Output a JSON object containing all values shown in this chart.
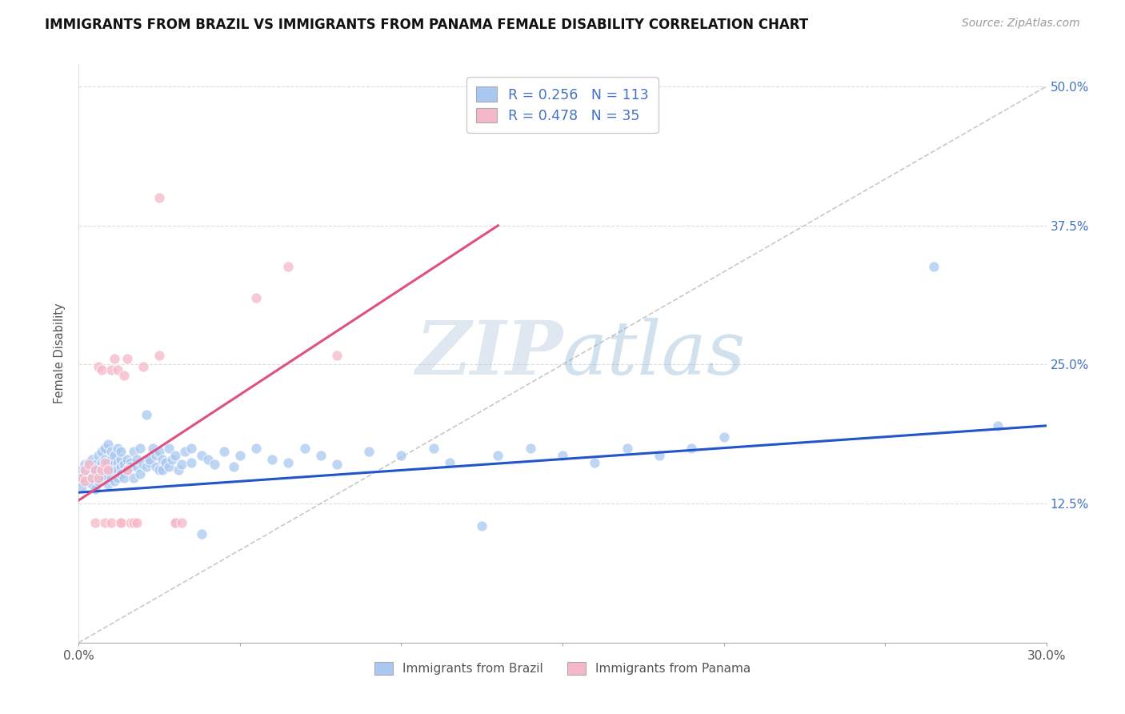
{
  "title": "IMMIGRANTS FROM BRAZIL VS IMMIGRANTS FROM PANAMA FEMALE DISABILITY CORRELATION CHART",
  "source": "Source: ZipAtlas.com",
  "xlabel_brazil": "Immigrants from Brazil",
  "xlabel_panama": "Immigrants from Panama",
  "ylabel": "Female Disability",
  "xlim": [
    0.0,
    0.3
  ],
  "ylim": [
    0.0,
    0.52
  ],
  "brazil_R": 0.256,
  "brazil_N": 113,
  "panama_R": 0.478,
  "panama_N": 35,
  "brazil_color": "#a8c8f0",
  "panama_color": "#f5b8c8",
  "brazil_trend_color": "#2255cc",
  "panama_trend_color": "#e05080",
  "diagonal_color": "#bbbbbb",
  "watermark_color": "#c5d8ec",
  "brazil_trend": [
    0.0,
    0.135,
    0.3,
    0.195
  ],
  "panama_trend": [
    0.0,
    0.128,
    0.13,
    0.375
  ],
  "brazil_scatter": [
    [
      0.001,
      0.15
    ],
    [
      0.001,
      0.145
    ],
    [
      0.001,
      0.155
    ],
    [
      0.001,
      0.14
    ],
    [
      0.002,
      0.148
    ],
    [
      0.002,
      0.16
    ],
    [
      0.002,
      0.155
    ],
    [
      0.002,
      0.152
    ],
    [
      0.003,
      0.158
    ],
    [
      0.003,
      0.145
    ],
    [
      0.003,
      0.162
    ],
    [
      0.003,
      0.15
    ],
    [
      0.004,
      0.155
    ],
    [
      0.004,
      0.148
    ],
    [
      0.004,
      0.165
    ],
    [
      0.004,
      0.142
    ],
    [
      0.005,
      0.16
    ],
    [
      0.005,
      0.152
    ],
    [
      0.005,
      0.155
    ],
    [
      0.005,
      0.138
    ],
    [
      0.006,
      0.158
    ],
    [
      0.006,
      0.148
    ],
    [
      0.006,
      0.168
    ],
    [
      0.006,
      0.145
    ],
    [
      0.007,
      0.162
    ],
    [
      0.007,
      0.155
    ],
    [
      0.007,
      0.172
    ],
    [
      0.007,
      0.15
    ],
    [
      0.008,
      0.158
    ],
    [
      0.008,
      0.148
    ],
    [
      0.008,
      0.165
    ],
    [
      0.008,
      0.175
    ],
    [
      0.009,
      0.162
    ],
    [
      0.009,
      0.155
    ],
    [
      0.009,
      0.178
    ],
    [
      0.009,
      0.142
    ],
    [
      0.01,
      0.155
    ],
    [
      0.01,
      0.148
    ],
    [
      0.01,
      0.165
    ],
    [
      0.01,
      0.172
    ],
    [
      0.011,
      0.16
    ],
    [
      0.011,
      0.155
    ],
    [
      0.011,
      0.145
    ],
    [
      0.011,
      0.168
    ],
    [
      0.012,
      0.162
    ],
    [
      0.012,
      0.155
    ],
    [
      0.012,
      0.148
    ],
    [
      0.012,
      0.175
    ],
    [
      0.013,
      0.158
    ],
    [
      0.013,
      0.152
    ],
    [
      0.013,
      0.165
    ],
    [
      0.013,
      0.172
    ],
    [
      0.014,
      0.16
    ],
    [
      0.014,
      0.148
    ],
    [
      0.015,
      0.155
    ],
    [
      0.015,
      0.165
    ],
    [
      0.016,
      0.162
    ],
    [
      0.016,
      0.158
    ],
    [
      0.017,
      0.148
    ],
    [
      0.017,
      0.172
    ],
    [
      0.018,
      0.158
    ],
    [
      0.018,
      0.165
    ],
    [
      0.019,
      0.175
    ],
    [
      0.019,
      0.152
    ],
    [
      0.02,
      0.16
    ],
    [
      0.021,
      0.205
    ],
    [
      0.021,
      0.158
    ],
    [
      0.022,
      0.162
    ],
    [
      0.022,
      0.165
    ],
    [
      0.023,
      0.175
    ],
    [
      0.024,
      0.168
    ],
    [
      0.024,
      0.158
    ],
    [
      0.025,
      0.155
    ],
    [
      0.025,
      0.172
    ],
    [
      0.026,
      0.165
    ],
    [
      0.026,
      0.155
    ],
    [
      0.027,
      0.162
    ],
    [
      0.028,
      0.175
    ],
    [
      0.028,
      0.158
    ],
    [
      0.029,
      0.165
    ],
    [
      0.03,
      0.168
    ],
    [
      0.031,
      0.155
    ],
    [
      0.032,
      0.16
    ],
    [
      0.033,
      0.172
    ],
    [
      0.035,
      0.162
    ],
    [
      0.035,
      0.175
    ],
    [
      0.038,
      0.168
    ],
    [
      0.038,
      0.098
    ],
    [
      0.04,
      0.165
    ],
    [
      0.042,
      0.16
    ],
    [
      0.045,
      0.172
    ],
    [
      0.048,
      0.158
    ],
    [
      0.05,
      0.168
    ],
    [
      0.055,
      0.175
    ],
    [
      0.06,
      0.165
    ],
    [
      0.065,
      0.162
    ],
    [
      0.07,
      0.175
    ],
    [
      0.075,
      0.168
    ],
    [
      0.08,
      0.16
    ],
    [
      0.09,
      0.172
    ],
    [
      0.1,
      0.168
    ],
    [
      0.11,
      0.175
    ],
    [
      0.115,
      0.162
    ],
    [
      0.125,
      0.105
    ],
    [
      0.13,
      0.168
    ],
    [
      0.14,
      0.175
    ],
    [
      0.15,
      0.168
    ],
    [
      0.16,
      0.162
    ],
    [
      0.17,
      0.175
    ],
    [
      0.18,
      0.168
    ],
    [
      0.19,
      0.175
    ],
    [
      0.2,
      0.185
    ],
    [
      0.265,
      0.338
    ],
    [
      0.285,
      0.195
    ]
  ],
  "panama_scatter": [
    [
      0.001,
      0.148
    ],
    [
      0.002,
      0.155
    ],
    [
      0.002,
      0.145
    ],
    [
      0.003,
      0.16
    ],
    [
      0.004,
      0.148
    ],
    [
      0.005,
      0.155
    ],
    [
      0.005,
      0.108
    ],
    [
      0.006,
      0.148
    ],
    [
      0.006,
      0.248
    ],
    [
      0.007,
      0.155
    ],
    [
      0.007,
      0.245
    ],
    [
      0.008,
      0.162
    ],
    [
      0.008,
      0.108
    ],
    [
      0.009,
      0.155
    ],
    [
      0.01,
      0.245
    ],
    [
      0.01,
      0.108
    ],
    [
      0.011,
      0.255
    ],
    [
      0.012,
      0.245
    ],
    [
      0.013,
      0.108
    ],
    [
      0.013,
      0.108
    ],
    [
      0.014,
      0.24
    ],
    [
      0.015,
      0.255
    ],
    [
      0.015,
      0.155
    ],
    [
      0.016,
      0.108
    ],
    [
      0.017,
      0.108
    ],
    [
      0.018,
      0.108
    ],
    [
      0.02,
      0.248
    ],
    [
      0.025,
      0.258
    ],
    [
      0.025,
      0.4
    ],
    [
      0.03,
      0.108
    ],
    [
      0.03,
      0.108
    ],
    [
      0.032,
      0.108
    ],
    [
      0.055,
      0.31
    ],
    [
      0.065,
      0.338
    ],
    [
      0.08,
      0.258
    ]
  ]
}
